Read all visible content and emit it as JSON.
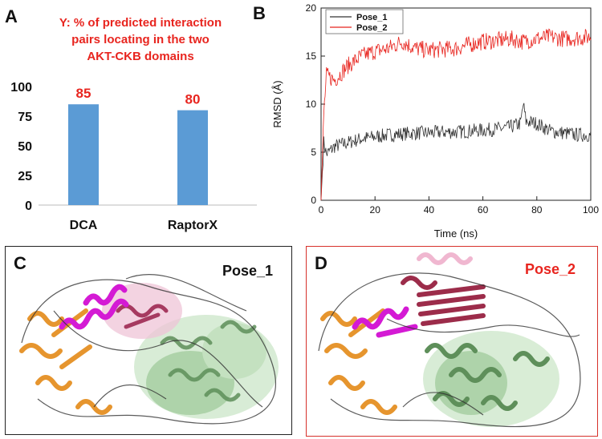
{
  "panels": {
    "a_letter": "A",
    "b_letter": "B",
    "c_letter": "C",
    "d_letter": "D"
  },
  "panel_a": {
    "title_lines": [
      "Y: % of predicted interaction",
      "pairs locating in the two",
      "AKT-CKB domains"
    ]
  },
  "panel_c": {
    "label": "Pose_1"
  },
  "panel_d": {
    "label": "Pose_2"
  },
  "colors": {
    "bar": "#5b9bd5",
    "label_red": "#e8251f",
    "pose1_line": "#333333",
    "pose2_line": "#e8251f",
    "d_border": "#d7312b",
    "c_border": "#222222"
  },
  "chart_data": [
    {
      "type": "bar",
      "categories": [
        "DCA",
        "RaptorX"
      ],
      "values": [
        85,
        80
      ],
      "data_labels": [
        "85",
        "80"
      ],
      "title": "Y: % of predicted interaction pairs locating in the two AKT-CKB domains",
      "ylim": [
        0,
        100
      ],
      "yticks": [
        0,
        25,
        50,
        75,
        100
      ],
      "ytick_labels": [
        "0",
        "25",
        "50",
        "75",
        "100"
      ]
    },
    {
      "type": "line",
      "xlabel": "Time (ns)",
      "ylabel": "RMSD (Å)",
      "xlim": [
        0,
        100
      ],
      "ylim": [
        0,
        20
      ],
      "xticks": [
        0,
        20,
        40,
        60,
        80,
        100
      ],
      "xtick_labels": [
        "0",
        "20",
        "40",
        "60",
        "80",
        "100"
      ],
      "yticks": [
        0,
        5,
        10,
        15,
        20
      ],
      "ytick_labels": [
        "0",
        "5",
        "10",
        "15",
        "20"
      ],
      "legend_position": "top-left",
      "series": [
        {
          "name": "Pose_1",
          "x": [
            0,
            1,
            2,
            5,
            10,
            15,
            20,
            25,
            30,
            35,
            40,
            45,
            50,
            55,
            60,
            65,
            70,
            74,
            75,
            76,
            80,
            85,
            90,
            95,
            100
          ],
          "values": [
            0,
            6.0,
            4.8,
            5.6,
            6.0,
            6.4,
            6.6,
            6.8,
            6.9,
            7.0,
            7.0,
            7.1,
            7.1,
            7.2,
            7.3,
            7.4,
            7.6,
            8.0,
            10.0,
            8.2,
            8.0,
            7.2,
            7.0,
            6.8,
            6.8
          ]
        },
        {
          "name": "Pose_2",
          "x": [
            0,
            1,
            2,
            5,
            10,
            15,
            20,
            25,
            30,
            35,
            40,
            45,
            50,
            55,
            60,
            65,
            70,
            75,
            80,
            85,
            90,
            95,
            100
          ],
          "values": [
            0,
            9.0,
            13.0,
            12.5,
            14.0,
            15.0,
            15.5,
            15.8,
            16.5,
            15.8,
            15.6,
            15.7,
            15.8,
            16.2,
            16.5,
            16.6,
            16.8,
            16.5,
            16.8,
            17.0,
            16.8,
            16.9,
            17.0
          ]
        }
      ]
    }
  ]
}
